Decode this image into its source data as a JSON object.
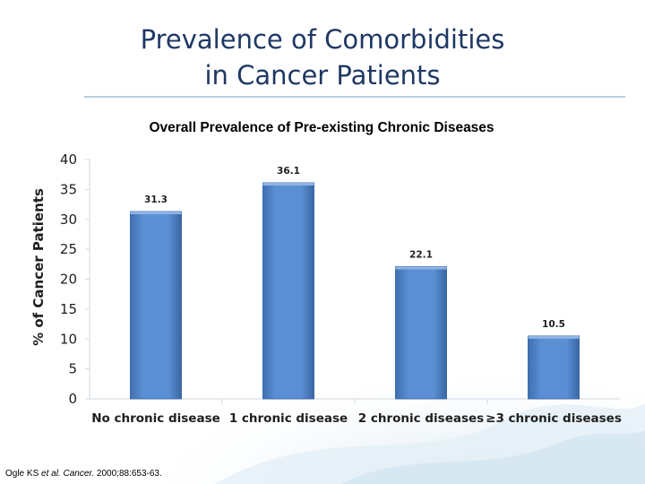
{
  "slide": {
    "title_line1": "Prevalence of Comorbidities",
    "title_line2": "in Cancer Patients",
    "source": {
      "author": "Ogle KS ",
      "etal": "et al.",
      "journal": " Cancer.",
      "citation": " 2000;88:653-63."
    }
  },
  "colors": {
    "bar": "#4f81c7",
    "bar_dark": "#3e6cab",
    "title": "#1f3864"
  },
  "chart_data": {
    "type": "bar",
    "title": "Overall Prevalence of Pre-existing Chronic Diseases",
    "ylabel": "% of Cancer Patients",
    "xlabel": "",
    "categories": [
      "No chronic disease",
      "1 chronic disease",
      "2 chronic diseases",
      "≥3 chronic diseases"
    ],
    "values": [
      31.3,
      36.1,
      22.1,
      10.5
    ],
    "value_labels": [
      "31.3",
      "36.1",
      "22.1",
      "10.5"
    ],
    "ylim": [
      0,
      40
    ],
    "yticks": [
      "0",
      "5",
      "10",
      "15",
      "20",
      "25",
      "30",
      "35",
      "40"
    ],
    "grid": false,
    "legend": "none"
  }
}
